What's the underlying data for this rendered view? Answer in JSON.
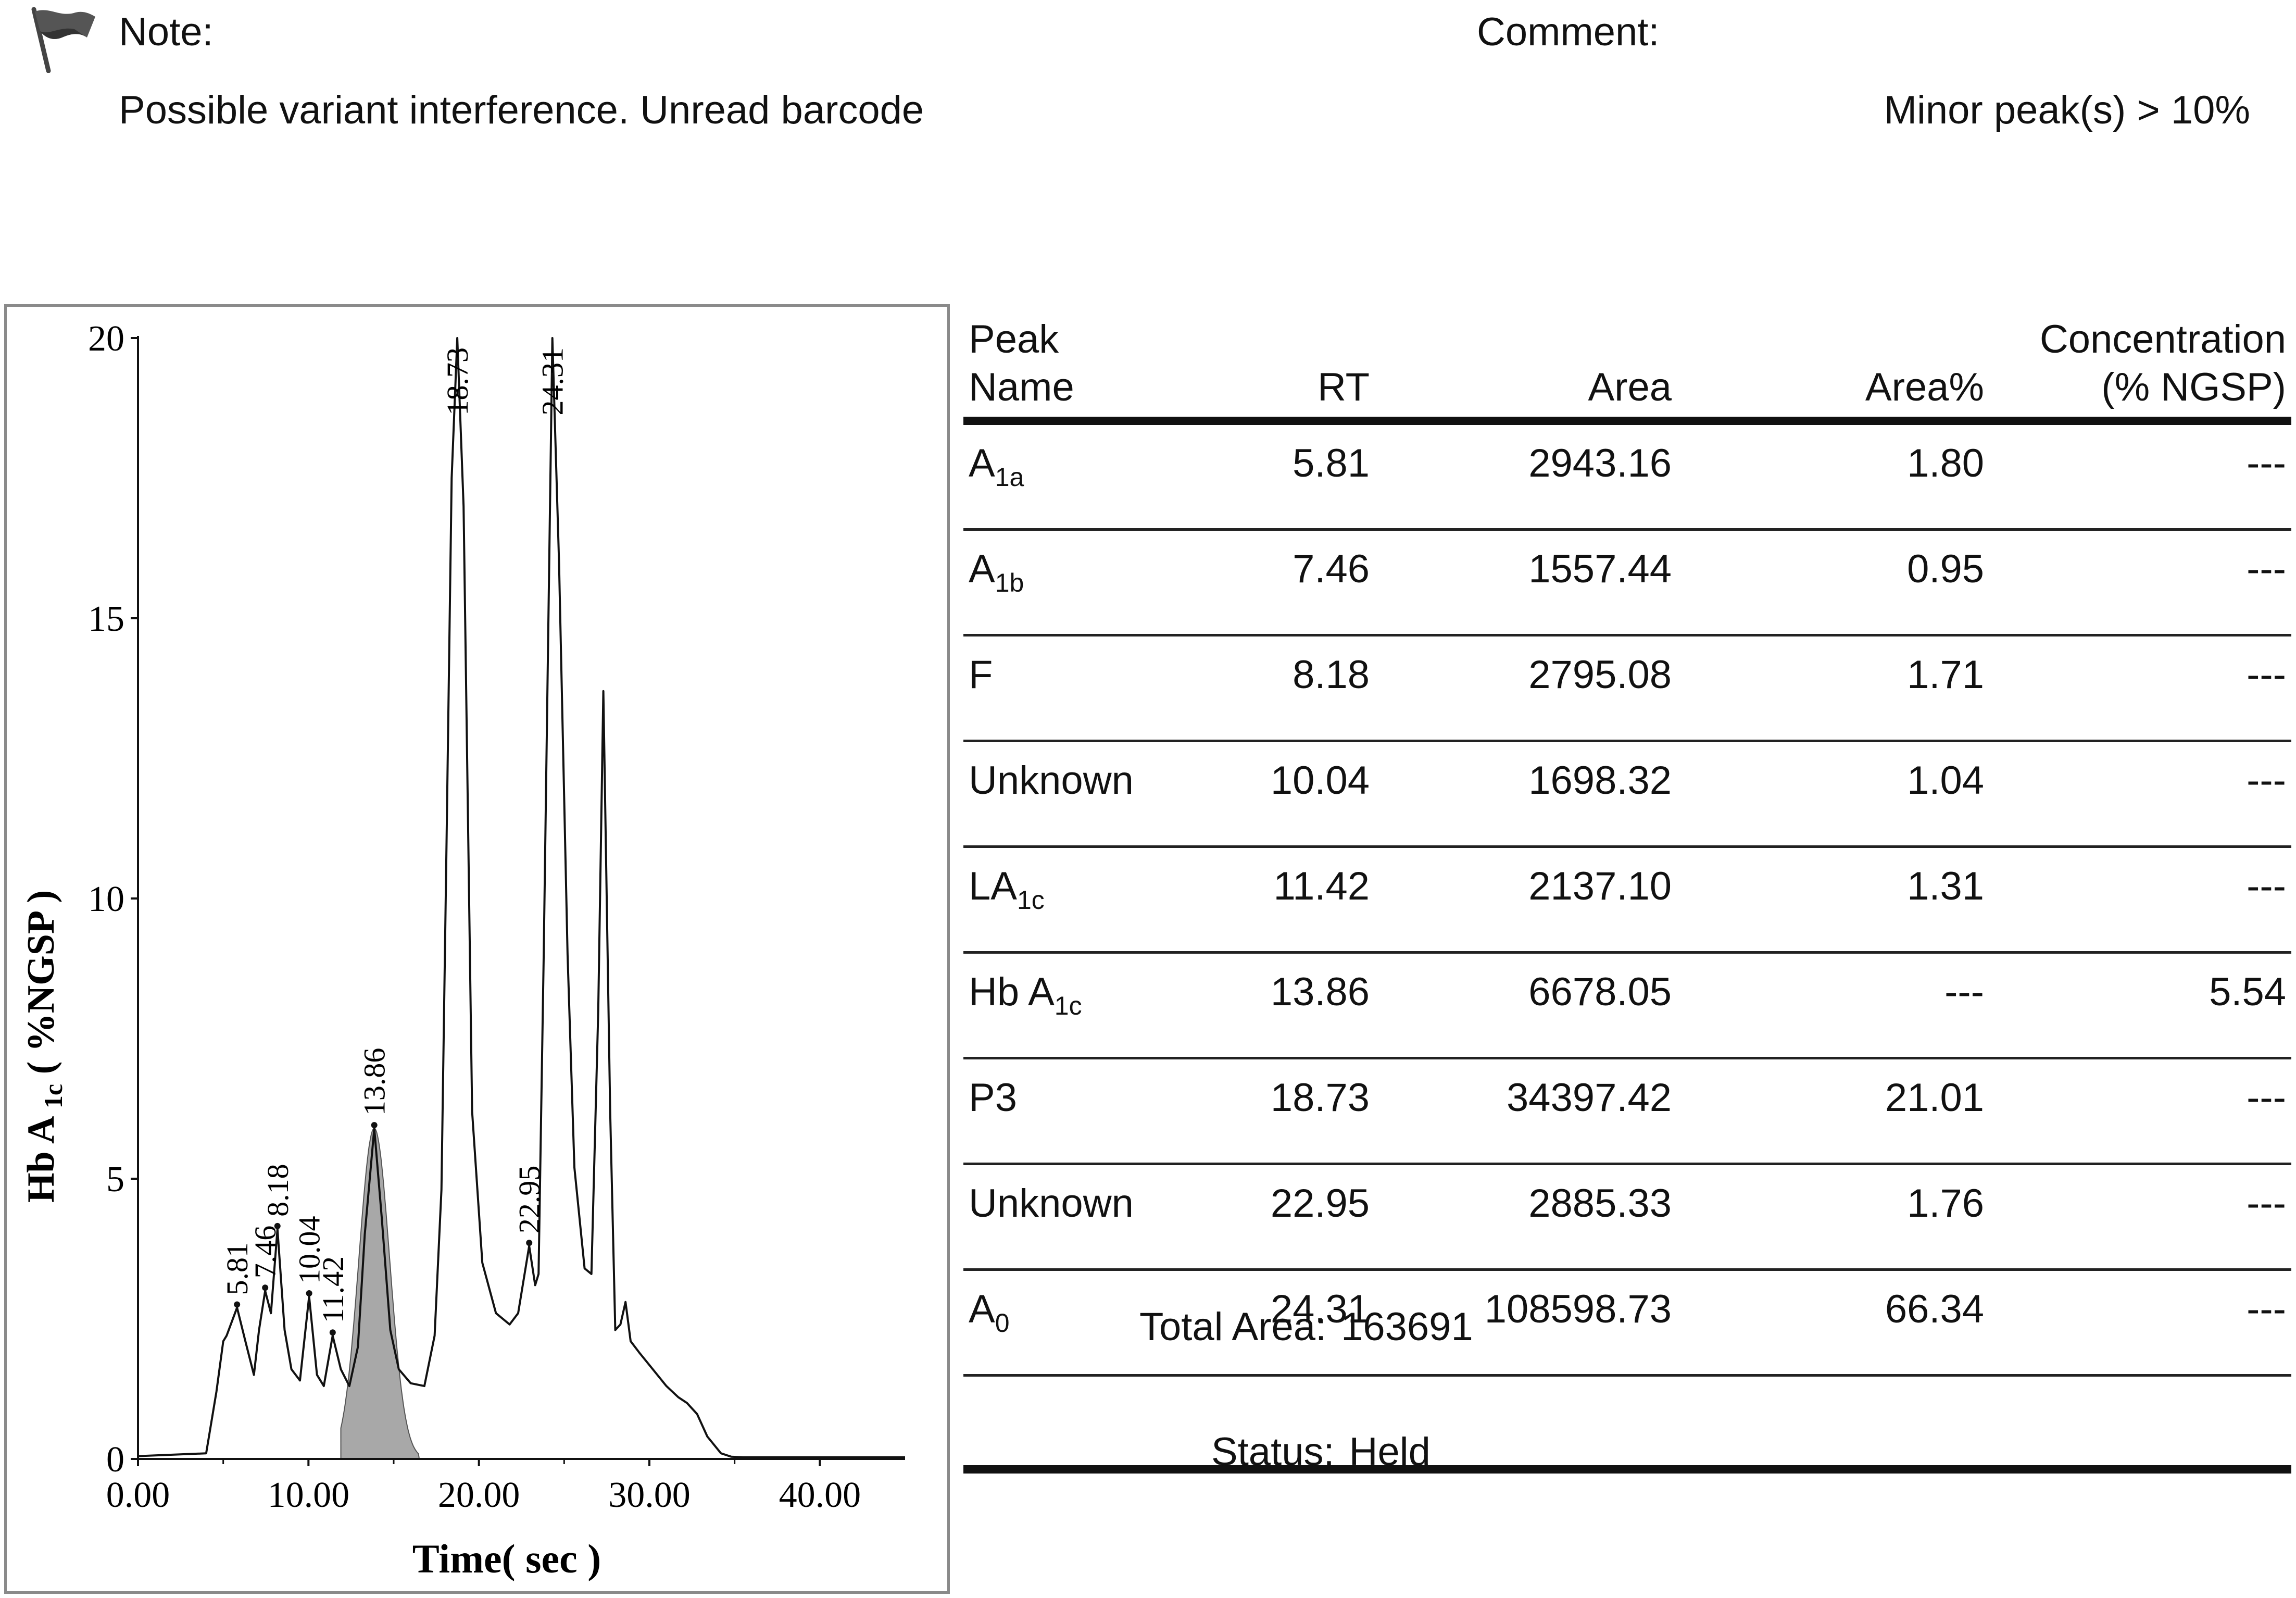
{
  "note": {
    "label": "Note:",
    "text": "Possible variant interference. Unread barcode"
  },
  "comment": {
    "label": "Comment:",
    "text": "Minor peak(s) > 10%"
  },
  "table": {
    "headers": [
      "Peak\nName",
      "RT",
      "Area",
      "Area%",
      "Concentration\n(% NGSP)"
    ],
    "rows": [
      {
        "name": "A",
        "sub": "1a",
        "rt": "5.81",
        "area": "2943.16",
        "pct": "1.80",
        "conc": "---"
      },
      {
        "name": "A",
        "sub": "1b",
        "rt": "7.46",
        "area": "1557.44",
        "pct": "0.95",
        "conc": "---"
      },
      {
        "name": "F",
        "sub": "",
        "rt": "8.18",
        "area": "2795.08",
        "pct": "1.71",
        "conc": "---"
      },
      {
        "name": "Unknown",
        "sub": "",
        "rt": "10.04",
        "area": "1698.32",
        "pct": "1.04",
        "conc": "---"
      },
      {
        "name": "LA",
        "sub": "1c",
        "rt": "11.42",
        "area": "2137.10",
        "pct": "1.31",
        "conc": "---"
      },
      {
        "name": "Hb A",
        "sub": "1c",
        "rt": "13.86",
        "area": "6678.05",
        "pct": "---",
        "conc": "5.54"
      },
      {
        "name": "P3",
        "sub": "",
        "rt": "18.73",
        "area": "34397.42",
        "pct": "21.01",
        "conc": "---"
      },
      {
        "name": "Unknown",
        "sub": "",
        "rt": "22.95",
        "area": "2885.33",
        "pct": "1.76",
        "conc": "---"
      },
      {
        "name": "A",
        "sub": "0",
        "rt": "24.31",
        "area": "108598.73",
        "pct": "66.34",
        "conc": "---"
      }
    ]
  },
  "summary": {
    "total_label": "Total Area:",
    "total_value": "163691",
    "status_label": "Status:",
    "status_value": "Held"
  },
  "chart_data": {
    "type": "line",
    "xlabel": "Time( sec )",
    "ylabel": "Hb A",
    "ylabel_sub": "1c",
    "ylabel_unit": "( %NGSP )",
    "xlim": [
      0,
      45
    ],
    "ylim": [
      0,
      20
    ],
    "xticks": [
      "0.00",
      "10.00",
      "20.00",
      "30.00",
      "40.00"
    ],
    "xtick_values": [
      0,
      10,
      20,
      30,
      40
    ],
    "yticks": [
      "0",
      "5",
      "10",
      "15",
      "20"
    ],
    "ytick_values": [
      0,
      5,
      10,
      15,
      20
    ],
    "series": [
      {
        "x": [
          0,
          4.0,
          4.6,
          5.0,
          5.2,
          5.81,
          6.3,
          6.8,
          7.1,
          7.46,
          7.8,
          8.18,
          8.6,
          9.0,
          9.5,
          10.04,
          10.5,
          10.9,
          11.42,
          11.9,
          12.4,
          12.9,
          13.3,
          13.86,
          14.3,
          14.8,
          15.3,
          16.0,
          16.8,
          17.4,
          17.8,
          18.1,
          18.4,
          18.73,
          19.1,
          19.6,
          20.2,
          21.0,
          21.8,
          22.3,
          22.95,
          23.3,
          23.5,
          23.8,
          24.31,
          24.7,
          25.2,
          25.6,
          26.2,
          26.6,
          27.0,
          27.3,
          27.7,
          28.0,
          28.3,
          28.6,
          28.9,
          29.4,
          30.2,
          31.0,
          31.7,
          32.2,
          32.8,
          33.4,
          34.2,
          34.8,
          35.5,
          45
        ],
        "y": [
          0.05,
          0.1,
          1.2,
          2.1,
          2.2,
          2.7,
          2.1,
          1.5,
          2.3,
          3.0,
          2.6,
          4.1,
          2.3,
          1.6,
          1.4,
          2.9,
          1.5,
          1.3,
          2.2,
          1.6,
          1.3,
          2.0,
          4.0,
          5.9,
          4.3,
          2.3,
          1.6,
          1.35,
          1.3,
          2.2,
          4.8,
          11.0,
          17.5,
          20,
          17.0,
          6.2,
          3.5,
          2.6,
          2.4,
          2.6,
          3.8,
          3.1,
          3.3,
          9.0,
          20,
          16.0,
          9.0,
          5.2,
          3.4,
          3.3,
          8.0,
          13.7,
          6.2,
          2.3,
          2.4,
          2.8,
          2.1,
          1.9,
          1.6,
          1.3,
          1.1,
          1.0,
          0.8,
          0.4,
          0.1,
          0.04,
          0.03,
          0.03
        ]
      }
    ],
    "shaded_peak": {
      "rt": 13.86,
      "height": 5.9,
      "start": 11.9,
      "end": 16.5
    },
    "peak_labels": [
      {
        "text": "5.81",
        "x": 5.81,
        "y": 2.7
      },
      {
        "text": "7.46",
        "x": 7.46,
        "y": 3.0
      },
      {
        "text": "8.18",
        "x": 8.18,
        "y": 4.1
      },
      {
        "text": "10.04",
        "x": 10.04,
        "y": 2.9
      },
      {
        "text": "11.42",
        "x": 11.42,
        "y": 2.2
      },
      {
        "text": "13.86",
        "x": 13.86,
        "y": 5.9
      },
      {
        "text": "22.95",
        "x": 22.95,
        "y": 3.8
      },
      {
        "text": "18.73",
        "x": 18.73,
        "y": 20
      },
      {
        "text": "24.31",
        "x": 24.31,
        "y": 20
      }
    ]
  }
}
